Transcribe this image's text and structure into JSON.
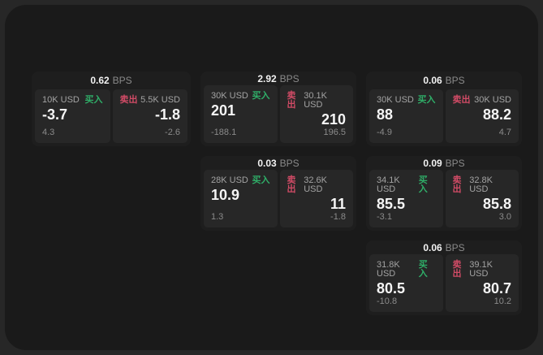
{
  "labels": {
    "bps_unit": "BPS",
    "buy": "买入",
    "sell": "卖出"
  },
  "colors": {
    "buy": "#2fae68",
    "sell": "#d14b66",
    "background": "#1a1a1a",
    "card": "#1e1e1e",
    "tile": "#272727"
  },
  "cards": [
    {
      "bps": "0.62",
      "buy": {
        "amount": "10K USD",
        "value": "-3.7",
        "sub": "4.3"
      },
      "sell": {
        "amount": "5.5K USD",
        "value": "-1.8",
        "sub": "-2.6"
      }
    },
    {
      "bps": "2.92",
      "buy": {
        "amount": "30K USD",
        "value": "201",
        "sub": "-188.1"
      },
      "sell": {
        "amount": "30.1K USD",
        "value": "210",
        "sub": "196.5"
      }
    },
    {
      "bps": "0.06",
      "buy": {
        "amount": "30K USD",
        "value": "88",
        "sub": "-4.9"
      },
      "sell": {
        "amount": "30K USD",
        "value": "88.2",
        "sub": "4.7"
      }
    },
    {
      "bps": "0.03",
      "buy": {
        "amount": "28K USD",
        "value": "10.9",
        "sub": "1.3"
      },
      "sell": {
        "amount": "32.6K USD",
        "value": "11",
        "sub": "-1.8"
      }
    },
    {
      "bps": "0.09",
      "buy": {
        "amount": "34.1K USD",
        "value": "85.5",
        "sub": "-3.1"
      },
      "sell": {
        "amount": "32.8K USD",
        "value": "85.8",
        "sub": "3.0"
      }
    },
    {
      "bps": "0.06",
      "buy": {
        "amount": "31.8K USD",
        "value": "80.5",
        "sub": "-10.8"
      },
      "sell": {
        "amount": "39.1K USD",
        "value": "80.7",
        "sub": "10.2"
      }
    }
  ]
}
